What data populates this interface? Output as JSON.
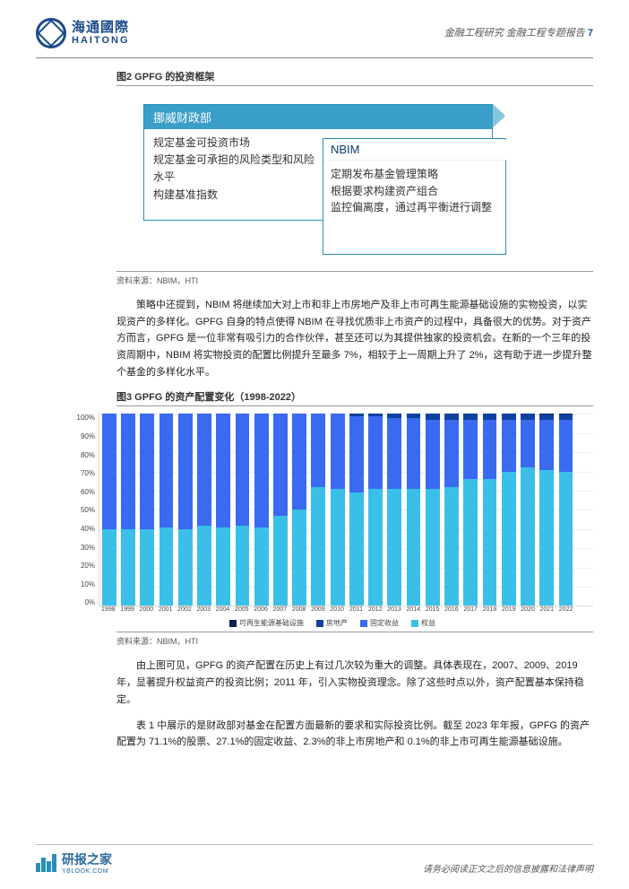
{
  "header": {
    "logo_cn": "海通國際",
    "logo_en": "HAITONG",
    "category": "金融工程研究 金融工程专题报告",
    "page_num": "7"
  },
  "fig2": {
    "title": "图2  GPFG 的投资框架",
    "box_a": {
      "head": "挪威财政部",
      "lines": [
        "规定基金可投资市场",
        "规定基金可承担的风险类型和风险水平",
        "构建基准指数"
      ]
    },
    "box_b": {
      "head": "NBIM",
      "lines": [
        "定期发布基金管理策略",
        "根据要求构建资产组合",
        "监控偏离度，通过再平衡进行调整"
      ]
    },
    "source": "资料来源：NBIM，HTI"
  },
  "para1": "策略中还提到，NBIM 将继续加大对上市和非上市房地产及非上市可再生能源基础设施的实物投资，以实现资产的多样化。GPFG 自身的特点使得 NBIM 在寻找优质非上市资产的过程中，具备很大的优势。对于资产方而言，GPFG 是一位非常有吸引力的合作伙伴，甚至还可以为其提供独家的投资机会。在新的一个三年的投资周期中，NBIM 将实物投资的配置比例提升至最多 7%，相较于上一周期上升了 2%，这有助于进一步提升整个基金的多样化水平。",
  "fig3": {
    "title": "图3  GPFG 的资产配置变化（1998-2022）",
    "legend": [
      {
        "label": "可再生能源基础设施",
        "color": "#0a2050"
      },
      {
        "label": "房地产",
        "color": "#1040a0"
      },
      {
        "label": "固定收益",
        "color": "#3a6af0"
      },
      {
        "label": "权益",
        "color": "#3ac0e8"
      }
    ],
    "colors": {
      "renewable": "#0a2050",
      "realestate": "#1040a0",
      "fixed": "#3a6af0",
      "equity": "#3ac0e8",
      "grid": "#eeeeee",
      "axis": "#dddddd",
      "bg": "#ffffff"
    },
    "y_axis": {
      "min": 0,
      "max": 100,
      "step": 10,
      "unit": "%"
    },
    "years": [
      "1998",
      "1999",
      "2000",
      "2001",
      "2002",
      "2003",
      "2004",
      "2005",
      "2006",
      "2007",
      "2008",
      "2009",
      "2010",
      "2011",
      "2012",
      "2013",
      "2014",
      "2015",
      "2016",
      "2017",
      "2018",
      "2019",
      "2020",
      "2021",
      "2022"
    ],
    "data": [
      {
        "equity": 40,
        "fixed": 60,
        "realestate": 0,
        "renewable": 0
      },
      {
        "equity": 40,
        "fixed": 60,
        "realestate": 0,
        "renewable": 0
      },
      {
        "equity": 40,
        "fixed": 60,
        "realestate": 0,
        "renewable": 0
      },
      {
        "equity": 41,
        "fixed": 59,
        "realestate": 0,
        "renewable": 0
      },
      {
        "equity": 40,
        "fixed": 60,
        "realestate": 0,
        "renewable": 0
      },
      {
        "equity": 42,
        "fixed": 58,
        "realestate": 0,
        "renewable": 0
      },
      {
        "equity": 41,
        "fixed": 59,
        "realestate": 0,
        "renewable": 0
      },
      {
        "equity": 42,
        "fixed": 58,
        "realestate": 0,
        "renewable": 0
      },
      {
        "equity": 41,
        "fixed": 59,
        "realestate": 0,
        "renewable": 0
      },
      {
        "equity": 47,
        "fixed": 53,
        "realestate": 0,
        "renewable": 0
      },
      {
        "equity": 50,
        "fixed": 50,
        "realestate": 0,
        "renewable": 0
      },
      {
        "equity": 62,
        "fixed": 38,
        "realestate": 0,
        "renewable": 0
      },
      {
        "equity": 61,
        "fixed": 39,
        "realestate": 0,
        "renewable": 0
      },
      {
        "equity": 59,
        "fixed": 40,
        "realestate": 1,
        "renewable": 0
      },
      {
        "equity": 61,
        "fixed": 38,
        "realestate": 1,
        "renewable": 0
      },
      {
        "equity": 61,
        "fixed": 37,
        "realestate": 2,
        "renewable": 0
      },
      {
        "equity": 61,
        "fixed": 37,
        "realestate": 2,
        "renewable": 0
      },
      {
        "equity": 61,
        "fixed": 36,
        "realestate": 3,
        "renewable": 0
      },
      {
        "equity": 62,
        "fixed": 35,
        "realestate": 3,
        "renewable": 0
      },
      {
        "equity": 66,
        "fixed": 31,
        "realestate": 3,
        "renewable": 0
      },
      {
        "equity": 66,
        "fixed": 31,
        "realestate": 3,
        "renewable": 0
      },
      {
        "equity": 70,
        "fixed": 27,
        "realestate": 3,
        "renewable": 0
      },
      {
        "equity": 72,
        "fixed": 25,
        "realestate": 3,
        "renewable": 0
      },
      {
        "equity": 71,
        "fixed": 26,
        "realestate": 2.9,
        "renewable": 0.1
      },
      {
        "equity": 70,
        "fixed": 27,
        "realestate": 2.9,
        "renewable": 0.1
      }
    ],
    "source": "资料来源：NBIM，HTI"
  },
  "para2": "由上图可见，GPFG 的资产配置在历史上有过几次较为重大的调整。具体表现在，2007、2009、2019 年，显著提升权益资产的投资比例；2011 年，引入实物投资理念。除了这些时点以外，资产配置基本保持稳定。",
  "para3": "表 1 中展示的是财政部对基金在配置方面最新的要求和实际投资比例。截至 2023 年年报，GPFG 的资产配置为 71.1%的股票、27.1%的固定收益、2.3%的非上市房地产和 0.1%的非上市可再生能源基础设施。",
  "footer": {
    "logo_cn": "研报之家",
    "logo_en": "YBLOOK.COM",
    "disclaimer": "请务必阅读正文之后的信息披露和法律声明"
  }
}
